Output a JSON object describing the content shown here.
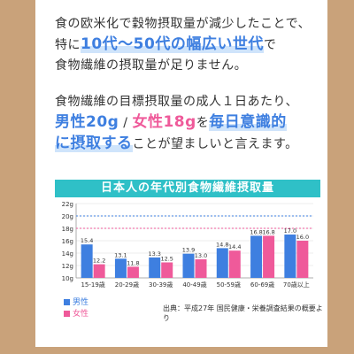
{
  "paragraph1": {
    "line1": "食の欧米化で穀物摂取量が減少したことで、",
    "line2_pre": "特に",
    "line2_hl": "10代〜50代の幅広い世代",
    "line2_post": "で",
    "line3": "食物繊維の摂取量が足りません。"
  },
  "paragraph2": {
    "line1": "食物繊維の目標摂取量の成人１日あたり、",
    "male_label": "男性20g",
    "sep": " / ",
    "female_label": "女性18g",
    "wo": "を",
    "hl1": "毎日意識的",
    "hl2": "に摂取する",
    "tail": "ことが望ましいと言えます。"
  },
  "chart_data": {
    "type": "bar",
    "title": "日本人の年代別食物繊維摂取量",
    "categories": [
      "15-19歳",
      "20-29歳",
      "30-39歳",
      "40-49歳",
      "50-59歳",
      "60-69歳",
      "70歳以上"
    ],
    "series": [
      {
        "name": "男性",
        "values": [
          15.4,
          13.1,
          13.3,
          13.9,
          14.8,
          16.8,
          17.0
        ],
        "labels": [
          "15.4",
          "13.1",
          "13.3",
          "13.9",
          "14.8",
          "16.8",
          "17.0"
        ]
      },
      {
        "name": "女性",
        "values": [
          12.2,
          11.8,
          12.5,
          13.0,
          14.4,
          16.8,
          16.0
        ],
        "labels": [
          "12.2",
          "11.8",
          "12.5",
          "13.0",
          "14.4",
          "16.8",
          "16.0"
        ]
      }
    ],
    "ylim": [
      10,
      22
    ],
    "yticks": [
      10,
      12,
      14,
      16,
      18,
      20,
      22
    ],
    "ytick_labels": [
      "10g",
      "12g",
      "14g",
      "16g",
      "18g",
      "20g",
      "22g"
    ],
    "reference_lines": [
      {
        "value": 20,
        "color": "#3e7fe0"
      },
      {
        "value": 18,
        "color": "#ef5a9a"
      }
    ],
    "colors": {
      "male": "#3e7fe0",
      "female": "#ef5a9a"
    }
  },
  "legend": {
    "male": "男性",
    "female": "女性"
  },
  "source": "出典：平成27年 国民健康・栄養調査結果の概要より"
}
